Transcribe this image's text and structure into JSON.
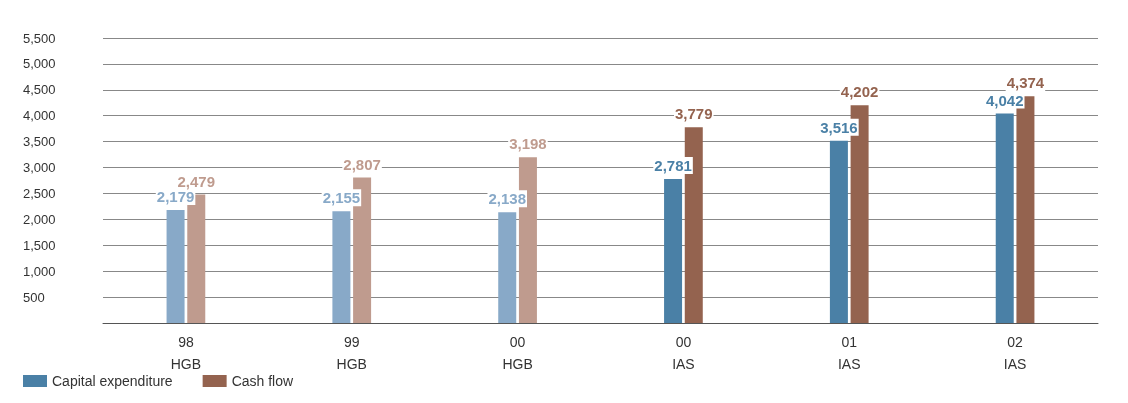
{
  "chart_data": {
    "type": "bar",
    "categories": [
      "98\nHGB",
      "99\nHGB",
      "00\nHGB",
      "00\nIAS",
      "01\nIAS",
      "02\nIAS"
    ],
    "series": [
      {
        "name": "Capital expenditure",
        "color": "#4a80a6",
        "colors": [
          "#88a9c8",
          "#88a9c8",
          "#88a9c8",
          "#4a80a6",
          "#4a80a6",
          "#4a80a6"
        ],
        "values": [
          2179,
          2155,
          2138,
          2781,
          3516,
          4042
        ],
        "value_labels": [
          "2,179",
          "2,155",
          "2,138",
          "2,781",
          "3,516",
          "4,042"
        ]
      },
      {
        "name": "Cash flow",
        "color": "#94634f",
        "colors": [
          "#bf9b8e",
          "#bf9b8e",
          "#bf9b8e",
          "#94634f",
          "#94634f",
          "#94634f"
        ],
        "values": [
          2479,
          2807,
          3198,
          3779,
          4202,
          4374
        ],
        "value_labels": [
          "2,479",
          "2,807",
          "3,198",
          "3,779",
          "4,202",
          "4,374"
        ]
      }
    ],
    "ylim": [
      0,
      5500
    ],
    "yticks": [
      {
        "value": 500,
        "label": "500"
      },
      {
        "value": 1000,
        "label": "1,000"
      },
      {
        "value": 1500,
        "label": "1,500"
      },
      {
        "value": 2000,
        "label": "2,000"
      },
      {
        "value": 2500,
        "label": "2,500"
      },
      {
        "value": 3000,
        "label": "3,000"
      },
      {
        "value": 3500,
        "label": "3,500"
      },
      {
        "value": 4000,
        "label": "4,000"
      },
      {
        "value": 4500,
        "label": "4,500"
      },
      {
        "value": 5000,
        "label": "5,000"
      },
      {
        "value": 5500,
        "label": "5,500"
      }
    ],
    "grid": "y",
    "legend": "bottom left"
  }
}
